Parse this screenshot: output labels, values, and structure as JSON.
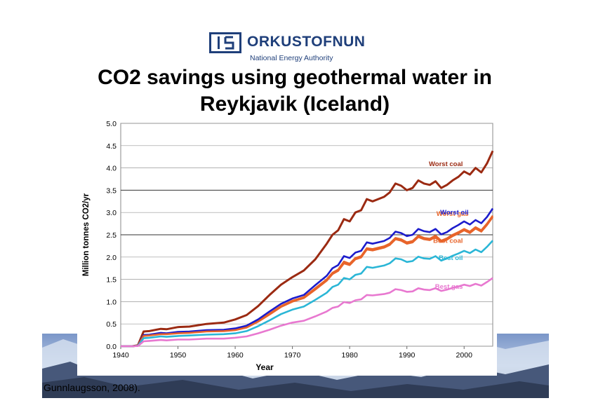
{
  "logo": {
    "name": "ORKUSTOFNUN",
    "subtitle": "National Energy Authority"
  },
  "title_line1": "CO2 savings using geothermal water in",
  "title_line2": "Reykjavik (Iceland)",
  "caption": "Gunnlaugsson, 2008).",
  "colors": {
    "worst_coal": "#9b2a12",
    "worst_gas": "#e8642a",
    "worst_oil": "#1c1ccc",
    "best_coal": "#e8642a",
    "best_oil": "#2ab6d6",
    "best_gas": "#e878d0",
    "title_blue": "#1f3f7a"
  },
  "chart_data": {
    "type": "line",
    "title": "",
    "xlabel": "Year",
    "ylabel": "Million tonnes CO2/yr",
    "xlim": [
      1940,
      2005
    ],
    "ylim": [
      0,
      5
    ],
    "x_ticks": [
      "1940",
      "1950",
      "1960",
      "1970",
      "1980",
      "1990",
      "2000"
    ],
    "y_ticks": [
      "0.0",
      "0.5",
      "1.0",
      "1.5",
      "2.0",
      "2.5",
      "3.0",
      "3.5",
      "4.0",
      "4.5",
      "5.0"
    ],
    "grid": "horizontal",
    "x": [
      1940,
      1942,
      1943,
      1944,
      1945,
      1947,
      1948,
      1950,
      1952,
      1955,
      1958,
      1960,
      1962,
      1964,
      1966,
      1968,
      1970,
      1972,
      1974,
      1976,
      1977,
      1978,
      1979,
      1980,
      1981,
      1982,
      1983,
      1984,
      1986,
      1987,
      1988,
      1989,
      1990,
      1991,
      1992,
      1993,
      1994,
      1995,
      1996,
      1997,
      1998,
      1999,
      2000,
      2001,
      2002,
      2003,
      2004,
      2005
    ],
    "series": [
      {
        "name": "Worst coal",
        "values": [
          0,
          0,
          0.02,
          0.33,
          0.34,
          0.39,
          0.38,
          0.43,
          0.44,
          0.5,
          0.53,
          0.6,
          0.7,
          0.9,
          1.15,
          1.38,
          1.55,
          1.7,
          1.95,
          2.3,
          2.5,
          2.6,
          2.85,
          2.8,
          3.0,
          3.05,
          3.3,
          3.25,
          3.35,
          3.45,
          3.65,
          3.6,
          3.5,
          3.55,
          3.72,
          3.65,
          3.62,
          3.7,
          3.55,
          3.62,
          3.72,
          3.8,
          3.92,
          3.85,
          4.0,
          3.9,
          4.1,
          4.38
        ]
      },
      {
        "name": "Worst gas",
        "values": [
          0,
          0,
          0.01,
          0.24,
          0.25,
          0.28,
          0.28,
          0.3,
          0.31,
          0.34,
          0.35,
          0.37,
          0.43,
          0.56,
          0.73,
          0.9,
          1.02,
          1.1,
          1.3,
          1.5,
          1.65,
          1.72,
          1.9,
          1.85,
          1.98,
          2.02,
          2.2,
          2.18,
          2.24,
          2.3,
          2.43,
          2.4,
          2.33,
          2.36,
          2.48,
          2.43,
          2.41,
          2.48,
          2.37,
          2.42,
          2.5,
          2.56,
          2.63,
          2.57,
          2.67,
          2.6,
          2.75,
          2.93
        ]
      },
      {
        "name": "Worst oil",
        "values": [
          0,
          0,
          0.01,
          0.25,
          0.26,
          0.3,
          0.29,
          0.32,
          0.33,
          0.36,
          0.37,
          0.4,
          0.46,
          0.6,
          0.78,
          0.95,
          1.07,
          1.15,
          1.37,
          1.58,
          1.75,
          1.82,
          2.02,
          1.98,
          2.1,
          2.14,
          2.33,
          2.3,
          2.36,
          2.43,
          2.57,
          2.54,
          2.47,
          2.5,
          2.63,
          2.58,
          2.56,
          2.63,
          2.51,
          2.56,
          2.65,
          2.72,
          2.8,
          2.73,
          2.83,
          2.76,
          2.9,
          3.09
        ]
      },
      {
        "name": "Best coal",
        "values": [
          0,
          0,
          0.01,
          0.23,
          0.24,
          0.27,
          0.27,
          0.29,
          0.3,
          0.33,
          0.34,
          0.36,
          0.42,
          0.55,
          0.71,
          0.88,
          1.0,
          1.08,
          1.27,
          1.47,
          1.62,
          1.69,
          1.86,
          1.82,
          1.95,
          1.99,
          2.17,
          2.15,
          2.21,
          2.27,
          2.4,
          2.37,
          2.3,
          2.33,
          2.45,
          2.4,
          2.38,
          2.45,
          2.34,
          2.39,
          2.47,
          2.53,
          2.6,
          2.54,
          2.64,
          2.57,
          2.72,
          2.9
        ]
      },
      {
        "name": "Best oil",
        "values": [
          0,
          0,
          0.01,
          0.18,
          0.19,
          0.22,
          0.21,
          0.23,
          0.24,
          0.26,
          0.27,
          0.29,
          0.34,
          0.45,
          0.58,
          0.72,
          0.82,
          0.89,
          1.04,
          1.2,
          1.33,
          1.38,
          1.53,
          1.5,
          1.6,
          1.63,
          1.78,
          1.76,
          1.81,
          1.86,
          1.97,
          1.95,
          1.89,
          1.91,
          2.01,
          1.97,
          1.96,
          2.02,
          1.92,
          1.97,
          2.03,
          2.08,
          2.14,
          2.09,
          2.17,
          2.11,
          2.23,
          2.37
        ]
      },
      {
        "name": "Best gas",
        "values": [
          0,
          0,
          0.005,
          0.11,
          0.12,
          0.14,
          0.13,
          0.15,
          0.15,
          0.17,
          0.17,
          0.19,
          0.22,
          0.29,
          0.37,
          0.46,
          0.53,
          0.57,
          0.67,
          0.78,
          0.86,
          0.89,
          0.99,
          0.97,
          1.03,
          1.05,
          1.15,
          1.14,
          1.17,
          1.2,
          1.28,
          1.26,
          1.22,
          1.23,
          1.3,
          1.27,
          1.26,
          1.3,
          1.24,
          1.27,
          1.31,
          1.34,
          1.38,
          1.35,
          1.4,
          1.36,
          1.44,
          1.53
        ]
      }
    ]
  }
}
